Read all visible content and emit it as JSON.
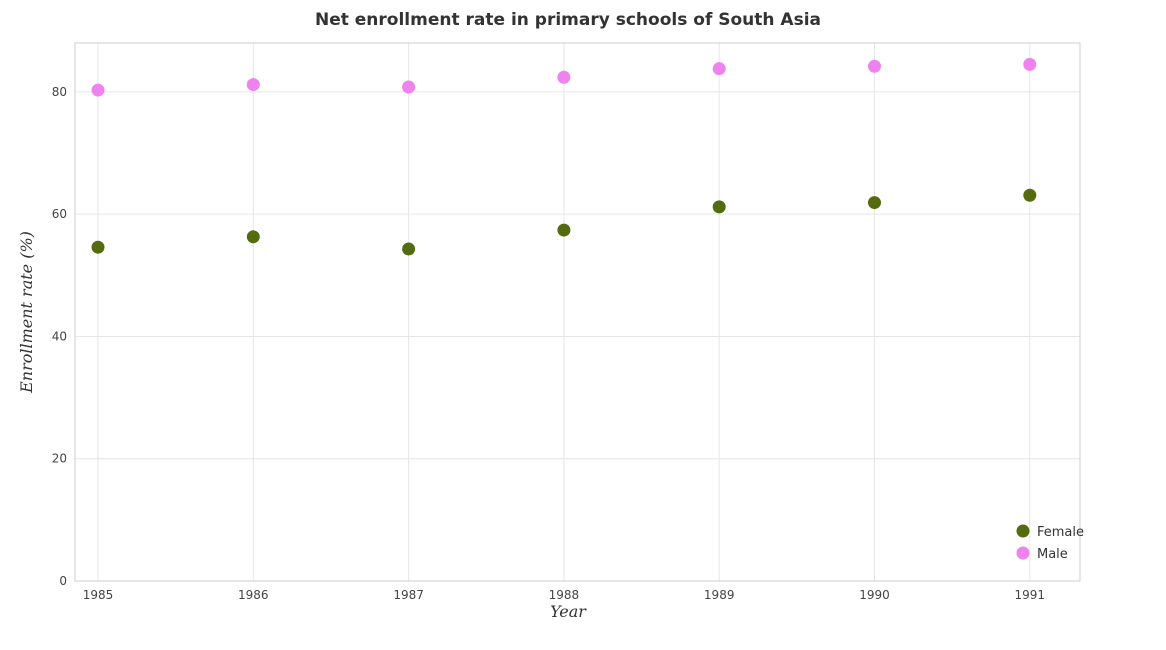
{
  "chart_data": {
    "type": "scatter",
    "title": "Net enrollment rate in primary schools of South Asia",
    "xlabel": "Year",
    "ylabel": "Enrollment rate (%)",
    "categories": [
      "1985",
      "1986",
      "1987",
      "1988",
      "1989",
      "1990",
      "1991"
    ],
    "ylim": [
      0,
      88
    ],
    "yticks": [
      0,
      20,
      40,
      60,
      80
    ],
    "grid": true,
    "legend_position": "bottom-right",
    "series": [
      {
        "name": "Female",
        "color": "#556b10",
        "values": [
          54.6,
          56.3,
          54.3,
          57.4,
          61.2,
          61.9,
          63.1
        ]
      },
      {
        "name": "Male",
        "color": "#ee82ee",
        "values": [
          80.3,
          81.2,
          80.8,
          82.4,
          83.8,
          84.2,
          84.5
        ]
      }
    ]
  }
}
